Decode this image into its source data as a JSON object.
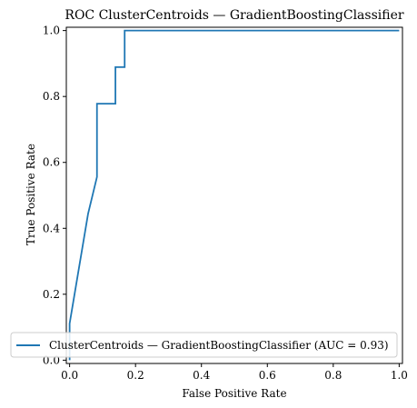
{
  "chart_data": {
    "type": "line",
    "title": "ROC ClusterCentroids — GradientBoostingClassifier",
    "xlabel": "False Positive Rate",
    "ylabel": "True Positive Rate",
    "xlim": [
      -0.01,
      1.01
    ],
    "ylim": [
      -0.01,
      1.01
    ],
    "xticks": [
      0.0,
      0.2,
      0.4,
      0.6,
      0.8,
      1.0
    ],
    "xtick_labels": [
      "0.0",
      "0.2",
      "0.4",
      "0.6",
      "0.8",
      "1.0"
    ],
    "yticks": [
      0.0,
      0.2,
      0.4,
      0.6,
      0.8,
      1.0
    ],
    "ytick_labels": [
      "0.0",
      "0.2",
      "0.4",
      "0.6",
      "0.8",
      "1.0"
    ],
    "grid": false,
    "legend_position": "lower-right",
    "series": [
      {
        "name": "ClusterCentroids — GradientBoostingClassifier (AUC = 0.93)",
        "color": "#1f77b4",
        "x": [
          0.0,
          0.0,
          0.056,
          0.083,
          0.083,
          0.139,
          0.139,
          0.167,
          0.167,
          1.0
        ],
        "y": [
          0.0,
          0.111,
          0.444,
          0.556,
          0.778,
          0.778,
          0.889,
          0.889,
          1.0,
          1.0
        ]
      }
    ]
  }
}
